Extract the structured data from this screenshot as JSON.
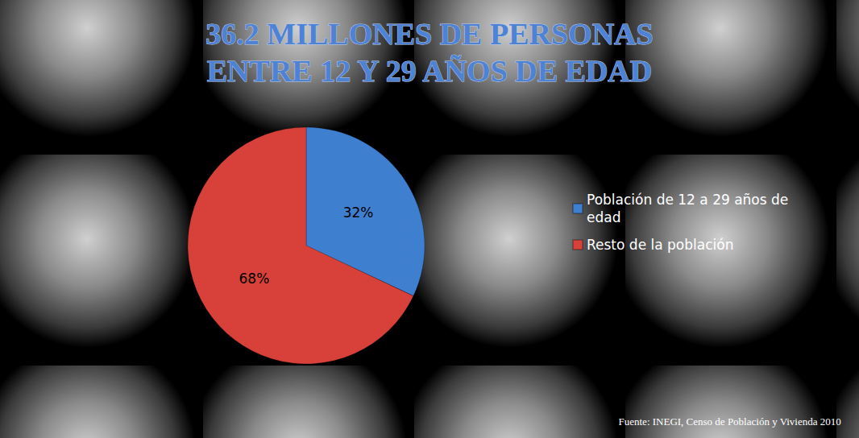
{
  "chart_data": {
    "type": "pie",
    "title": "36.2 MILLONES DE PERSONAS ENTRE 12 Y 29 AÑOS DE EDAD",
    "categories": [
      "Población de 12 a 29 años de edad",
      "Resto de la población"
    ],
    "values": [
      32,
      68
    ],
    "value_labels": [
      "32%",
      "68%"
    ],
    "colors": [
      "#3f7fd0",
      "#d8403a"
    ],
    "data_labels": true,
    "legend": "right",
    "annotations": [
      "Fuente: INEGI, Censo de Población y Vivienda 2010"
    ]
  }
}
